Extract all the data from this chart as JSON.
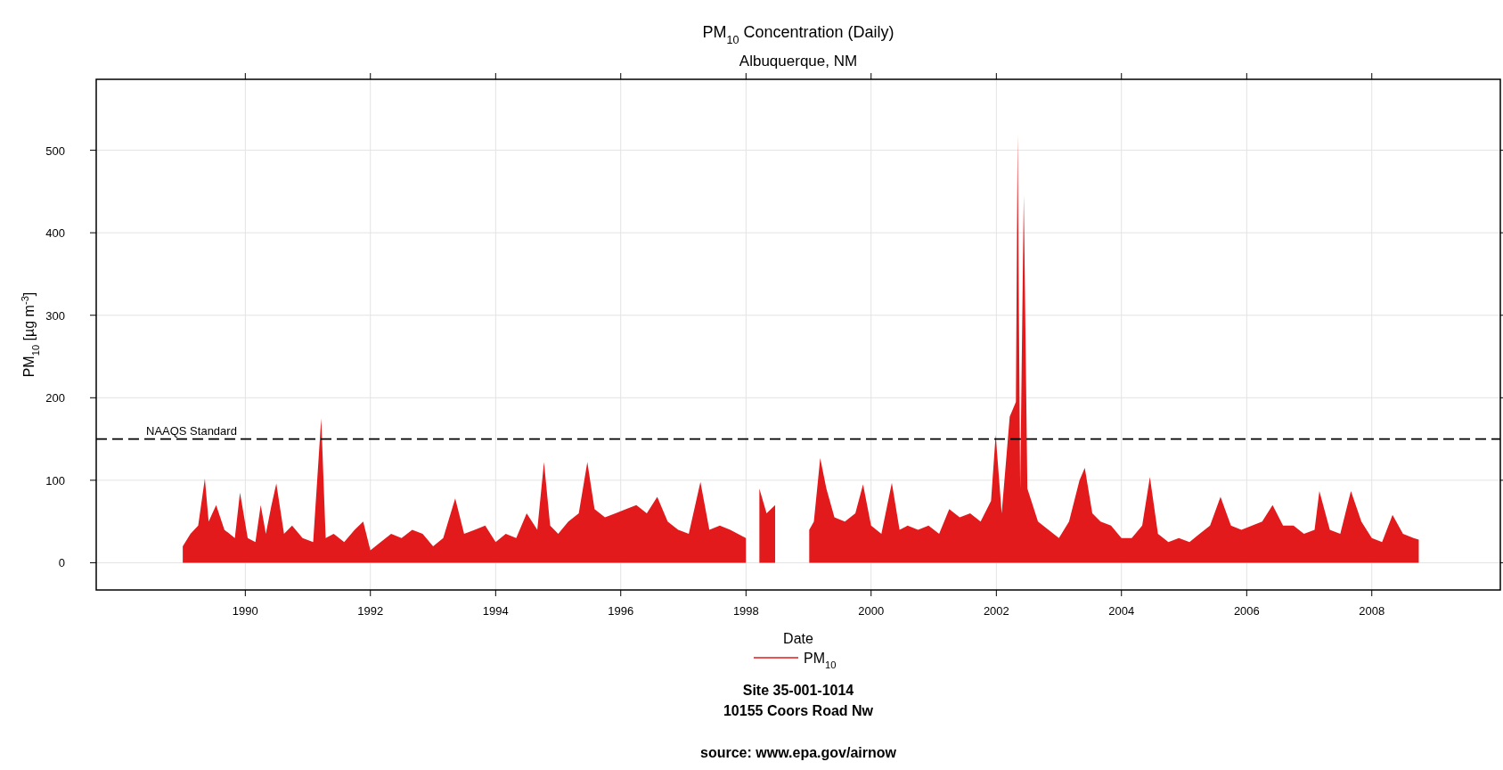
{
  "chart_data": {
    "type": "area",
    "title": "PM$_{10}$ Concentration (Daily)",
    "subtitle": "Albuquerque, NM",
    "xlabel": "Date",
    "ylabel": "PM$_{10}$ [µg m$^{-3}$]",
    "annotations": [
      "Site 35-001-1014",
      "10155 Coors Road Nw",
      "source: www.epa.gov/airnow"
    ],
    "xlim": [
      "1987-08-15",
      "2010-01-20"
    ],
    "ylim": [
      -33,
      586
    ],
    "xticks": [
      {
        "value": "1990",
        "label": "1990"
      },
      {
        "value": "1992",
        "label": "1992"
      },
      {
        "value": "1994",
        "label": "1994"
      },
      {
        "value": "1996",
        "label": "1996"
      },
      {
        "value": "1998",
        "label": "1998"
      },
      {
        "value": "2000",
        "label": "2000"
      },
      {
        "value": "2002",
        "label": "2002"
      },
      {
        "value": "2004",
        "label": "2004"
      },
      {
        "value": "2006",
        "label": "2006"
      },
      {
        "value": "2008",
        "label": "2008"
      }
    ],
    "yticks": [
      0,
      100,
      200,
      300,
      400,
      500
    ],
    "grid": true,
    "legend": "bottom",
    "ref_lines": [
      {
        "axis": "y",
        "value": 150,
        "label": "NAAQS Standard",
        "color": "#000000",
        "line_style": "dashed"
      }
    ],
    "x": [
      "1989-01-01",
      "1989-02-15",
      "1989-04-01",
      "1989-05-10",
      "1989-06-01",
      "1989-07-15",
      "1989-09-01",
      "1989-11-01",
      "1989-12-01",
      "1990-01-15",
      "1990-03-01",
      "1990-04-01",
      "1990-05-01",
      "1990-06-01",
      "1990-07-01",
      "1990-08-15",
      "1990-10-01",
      "1990-12-01",
      "1991-02-01",
      "1991-03-20",
      "1991-04-15",
      "1991-06-01",
      "1991-08-01",
      "1991-10-01",
      "1991-11-20",
      "1992-01-01",
      "1992-03-01",
      "1992-05-01",
      "1992-07-01",
      "1992-09-01",
      "1992-11-01",
      "1993-01-01",
      "1993-03-01",
      "1993-05-10",
      "1993-07-01",
      "1993-09-01",
      "1993-11-01",
      "1994-01-01",
      "1994-03-01",
      "1994-05-01",
      "1994-07-01",
      "1994-09-01",
      "1994-10-10",
      "1994-11-15",
      "1995-01-01",
      "1995-03-01",
      "1995-05-01",
      "1995-06-20",
      "1995-08-01",
      "1995-10-01",
      "1995-12-01",
      "1996-02-01",
      "1996-04-01",
      "1996-06-01",
      "1996-08-01",
      "1996-10-01",
      "1996-12-01",
      "1997-02-01",
      "1997-04-10",
      "1997-06-01",
      "1997-08-01",
      "1997-10-01",
      "1997-12-31",
      "1998-01-15",
      "1998-03-20",
      "1998-05-01",
      "1998-06-20",
      "1998-08-01",
      "1999-01-05",
      "1999-02-01",
      "1999-03-10",
      "1999-04-15",
      "1999-06-01",
      "1999-08-01",
      "1999-10-01",
      "1999-11-15",
      "2000-01-01",
      "2000-03-01",
      "2000-05-01",
      "2000-06-15",
      "2000-08-01",
      "2000-10-01",
      "2000-12-01",
      "2001-02-01",
      "2001-04-01",
      "2001-06-01",
      "2001-08-01",
      "2001-10-01",
      "2001-12-01",
      "2001-12-28",
      "2002-02-01",
      "2002-03-20",
      "2002-04-25",
      "2002-05-05",
      "2002-05-20",
      "2002-06-10",
      "2002-07-01",
      "2002-09-01",
      "2002-11-01",
      "2003-01-01",
      "2003-03-01",
      "2003-05-01",
      "2003-06-01",
      "2003-07-15",
      "2003-09-01",
      "2003-11-01",
      "2004-01-01",
      "2004-03-01",
      "2004-05-01",
      "2004-06-15",
      "2004-08-01",
      "2004-10-01",
      "2004-12-01",
      "2005-02-01",
      "2005-04-01",
      "2005-06-01",
      "2005-08-01",
      "2005-10-01",
      "2005-12-01",
      "2006-02-01",
      "2006-04-01",
      "2006-06-01",
      "2006-08-01",
      "2006-10-01",
      "2006-12-01",
      "2007-02-01",
      "2007-03-01",
      "2007-05-01",
      "2007-07-01",
      "2007-09-01",
      "2007-11-01",
      "2008-01-01",
      "2008-03-01",
      "2008-05-01",
      "2008-07-01",
      "2008-09-01",
      "2008-10-01"
    ],
    "series": [
      {
        "name": "PM$_{10}$",
        "color": "#e31a1c",
        "values": [
          20,
          35,
          45,
          102,
          50,
          70,
          40,
          30,
          85,
          30,
          25,
          70,
          35,
          68,
          96,
          35,
          45,
          30,
          25,
          175,
          30,
          35,
          25,
          40,
          50,
          15,
          25,
          35,
          30,
          40,
          35,
          20,
          30,
          78,
          35,
          40,
          45,
          25,
          35,
          30,
          60,
          40,
          122,
          45,
          35,
          50,
          60,
          122,
          65,
          55,
          60,
          65,
          70,
          60,
          80,
          50,
          40,
          35,
          98,
          40,
          45,
          40,
          30,
          null,
          90,
          60,
          70,
          null,
          40,
          50,
          127,
          90,
          55,
          50,
          60,
          95,
          45,
          35,
          97,
          40,
          45,
          40,
          45,
          35,
          65,
          55,
          60,
          50,
          75,
          155,
          60,
          177,
          195,
          519,
          90,
          445,
          90,
          50,
          40,
          30,
          50,
          100,
          115,
          60,
          50,
          45,
          30,
          30,
          45,
          104,
          35,
          25,
          30,
          25,
          35,
          45,
          80,
          45,
          40,
          45,
          50,
          70,
          45,
          45,
          35,
          40,
          87,
          40,
          35,
          87,
          50,
          30,
          25,
          58,
          35,
          30,
          28
        ]
      }
    ]
  }
}
